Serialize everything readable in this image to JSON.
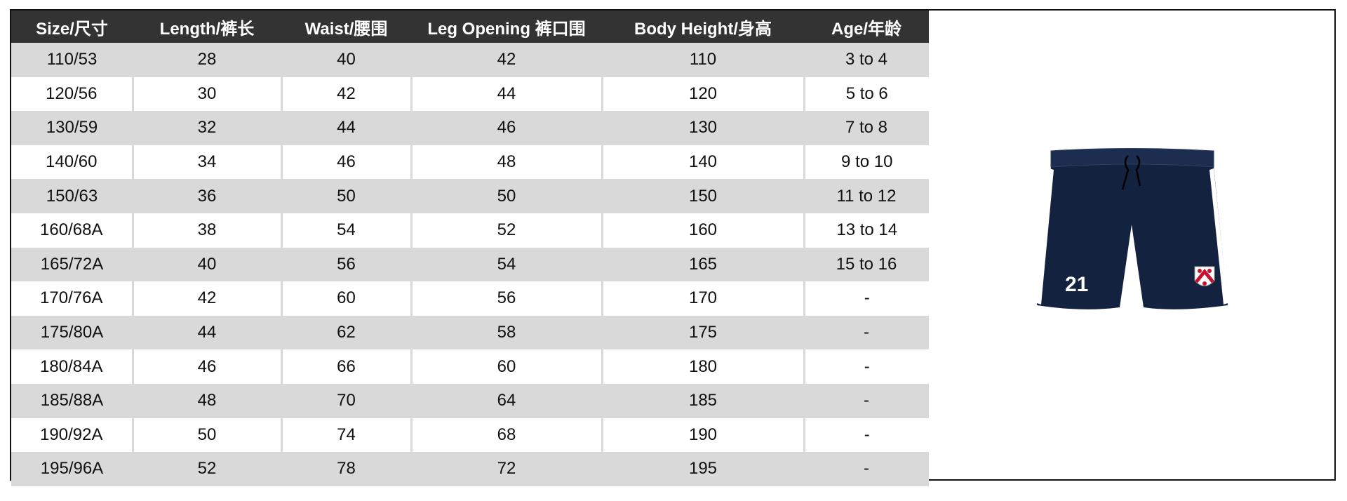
{
  "headers": [
    "Size/尺寸",
    "Length/裤长",
    "Waist/腰围",
    "Leg Opening 裤口围",
    "Body Height/身高",
    "Age/年龄"
  ],
  "rows": [
    [
      "110/53",
      "28",
      "40",
      "42",
      "110",
      "3 to 4"
    ],
    [
      "120/56",
      "30",
      "42",
      "44",
      "120",
      "5 to 6"
    ],
    [
      "130/59",
      "32",
      "44",
      "46",
      "130",
      "7 to 8"
    ],
    [
      "140/60",
      "34",
      "46",
      "48",
      "140",
      "9 to 10"
    ],
    [
      "150/63",
      "36",
      "50",
      "50",
      "150",
      "11 to 12"
    ],
    [
      "160/68A",
      "38",
      "54",
      "52",
      "160",
      "13 to 14"
    ],
    [
      "165/72A",
      "40",
      "56",
      "54",
      "165",
      "15 to 16"
    ],
    [
      "170/76A",
      "42",
      "60",
      "56",
      "170",
      "-"
    ],
    [
      "175/80A",
      "44",
      "62",
      "58",
      "175",
      "-"
    ],
    [
      "180/84A",
      "46",
      "66",
      "60",
      "180",
      "-"
    ],
    [
      "185/88A",
      "48",
      "70",
      "64",
      "185",
      "-"
    ],
    [
      "190/92A",
      "50",
      "74",
      "68",
      "190",
      "-"
    ],
    [
      "195/96A",
      "52",
      "78",
      "72",
      "195",
      "-"
    ]
  ],
  "product_image": {
    "number": "21",
    "color": "#13223f"
  }
}
